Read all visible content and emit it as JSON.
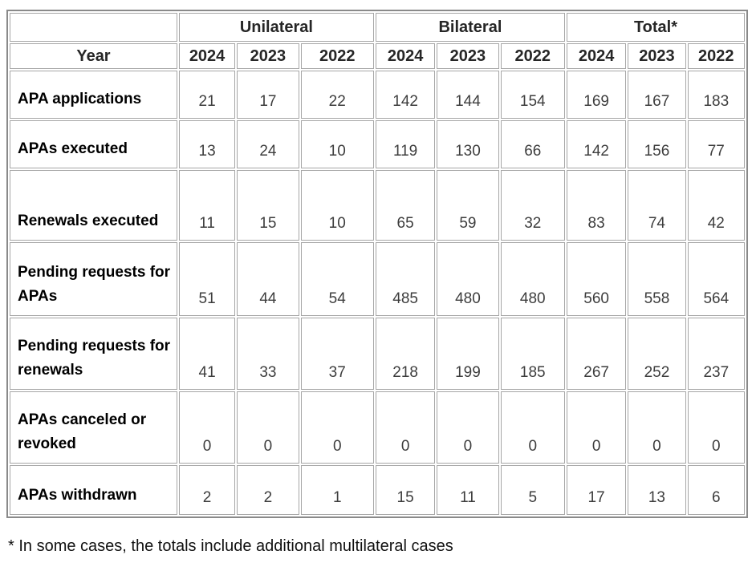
{
  "chart_data": {
    "type": "table",
    "title": "",
    "year_label": "Year",
    "groups": [
      "Unilateral",
      "Bilateral",
      "Total*"
    ],
    "years": [
      "2024",
      "2023",
      "2022"
    ],
    "columns": [
      "Unilateral 2024",
      "Unilateral 2023",
      "Unilateral 2022",
      "Bilateral 2024",
      "Bilateral 2023",
      "Bilateral 2022",
      "Total* 2024",
      "Total* 2023",
      "Total* 2022"
    ],
    "rows": [
      {
        "label": "APA applications",
        "values": [
          21,
          17,
          22,
          142,
          144,
          154,
          169,
          167,
          183
        ]
      },
      {
        "label": "APAs executed",
        "values": [
          13,
          24,
          10,
          119,
          130,
          66,
          142,
          156,
          77
        ]
      },
      {
        "label": "Renewals executed",
        "values": [
          11,
          15,
          10,
          65,
          59,
          32,
          83,
          74,
          42
        ]
      },
      {
        "label": "Pending requests for APAs",
        "values": [
          51,
          44,
          54,
          485,
          480,
          480,
          560,
          558,
          564
        ]
      },
      {
        "label": "Pending requests for renewals",
        "values": [
          41,
          33,
          37,
          218,
          199,
          185,
          267,
          252,
          237
        ]
      },
      {
        "label": "APAs canceled or revoked",
        "values": [
          0,
          0,
          0,
          0,
          0,
          0,
          0,
          0,
          0
        ]
      },
      {
        "label": "APAs withdrawn",
        "values": [
          2,
          2,
          1,
          15,
          11,
          5,
          17,
          13,
          6
        ]
      }
    ],
    "footnote": "* In some cases, the totals include additional multilateral cases",
    "colors": {
      "outer_border": "#8a8a8a",
      "cell_border": "#a6a6a6",
      "label_text": "#000000",
      "value_text": "#3d3d3d",
      "header_text": "#262626",
      "background": "#ffffff"
    }
  }
}
